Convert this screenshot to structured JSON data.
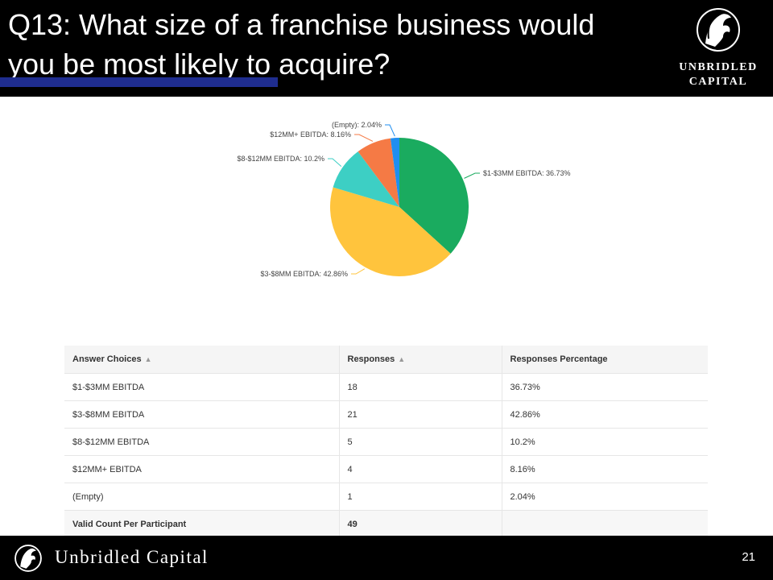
{
  "slide": {
    "title_line1": "Q13: What size of a franchise business would",
    "title_line2": "you be most likely to acquire?",
    "page_number": "21"
  },
  "brand": {
    "logo_line1": "UNBRIDLED",
    "logo_line2": "CAPITAL",
    "footer_name": "Unbridled Capital"
  },
  "colors": {
    "header_bg": "#000000",
    "title_underline": "#1f2d8f",
    "slice_1": "#1aab5f",
    "slice_2": "#ffc43d",
    "slice_3": "#3dcfc4",
    "slice_4": "#f57a45",
    "slice_5": "#1f8ef0"
  },
  "chart_data": {
    "type": "pie",
    "categories": [
      "$1-$3MM EBITDA",
      "$3-$8MM EBITDA",
      "$8-$12MM EBITDA",
      "$12MM+ EBITDA",
      "(Empty)"
    ],
    "values": [
      36.73,
      42.86,
      10.2,
      8.16,
      2.04
    ],
    "labels": [
      "$1-$3MM EBITDA: 36.73%",
      "$3-$8MM EBITDA: 42.86%",
      "$8-$12MM EBITDA: 10.2%",
      "$12MM+ EBITDA: 8.16%",
      "(Empty): 2.04%"
    ]
  },
  "table": {
    "headers": [
      "Answer Choices",
      "Responses",
      "Responses Percentage"
    ],
    "rows": [
      [
        "$1-$3MM EBITDA",
        "18",
        "36.73%"
      ],
      [
        "$3-$8MM EBITDA",
        "21",
        "42.86%"
      ],
      [
        "$8-$12MM EBITDA",
        "5",
        "10.2%"
      ],
      [
        "$12MM+ EBITDA",
        "4",
        "8.16%"
      ],
      [
        "(Empty)",
        "1",
        "2.04%"
      ]
    ],
    "total": [
      "Valid Count Per Participant",
      "49",
      ""
    ]
  }
}
